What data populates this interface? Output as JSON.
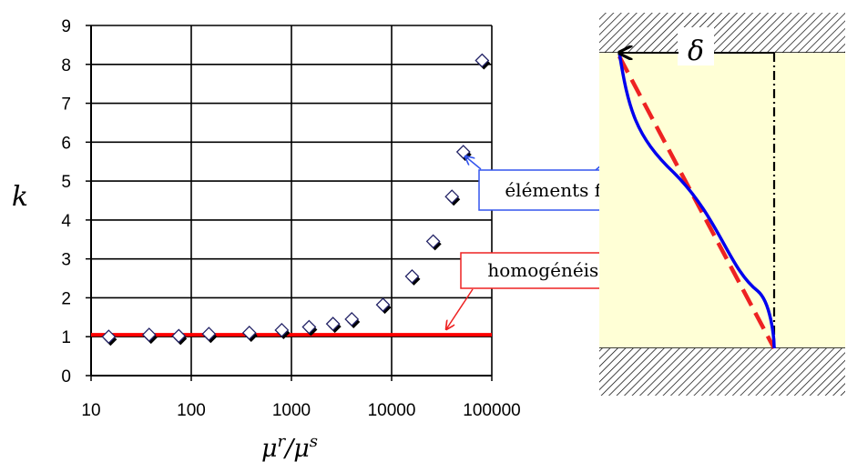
{
  "chart_data": {
    "type": "scatter",
    "x_scale": "log",
    "xlim": [
      10,
      100000
    ],
    "ylim": [
      0,
      9
    ],
    "grid": true,
    "xlabel": "μ^r / μ^s",
    "ylabel": "k",
    "x_ticks": [
      "10",
      "100",
      "1000",
      "10000",
      "100000"
    ],
    "y_ticks": [
      "0",
      "1",
      "2",
      "3",
      "4",
      "5",
      "6",
      "7",
      "8",
      "9"
    ],
    "series": [
      {
        "marker": "diamond",
        "x": [
          15,
          38,
          75,
          150,
          380,
          800,
          1500,
          2600,
          4000,
          8200,
          16000,
          26000,
          40000,
          52000,
          80000
        ],
        "y": [
          1.0,
          1.05,
          1.02,
          1.07,
          1.1,
          1.17,
          1.25,
          1.33,
          1.45,
          1.82,
          2.55,
          3.45,
          4.6,
          5.75,
          8.1
        ]
      }
    ],
    "reference_line": {
      "y": 1.05,
      "color": "#ff0000"
    }
  },
  "annotations": {
    "fem_label": "éléments finis",
    "homog_label": "homogénéisation",
    "delta": "δ"
  },
  "colors": {
    "fem_curve": "#0000ee",
    "homog_curve": "#ee2222",
    "schematic_bg": "#ffffd6",
    "reference_line": "#ff0000"
  }
}
